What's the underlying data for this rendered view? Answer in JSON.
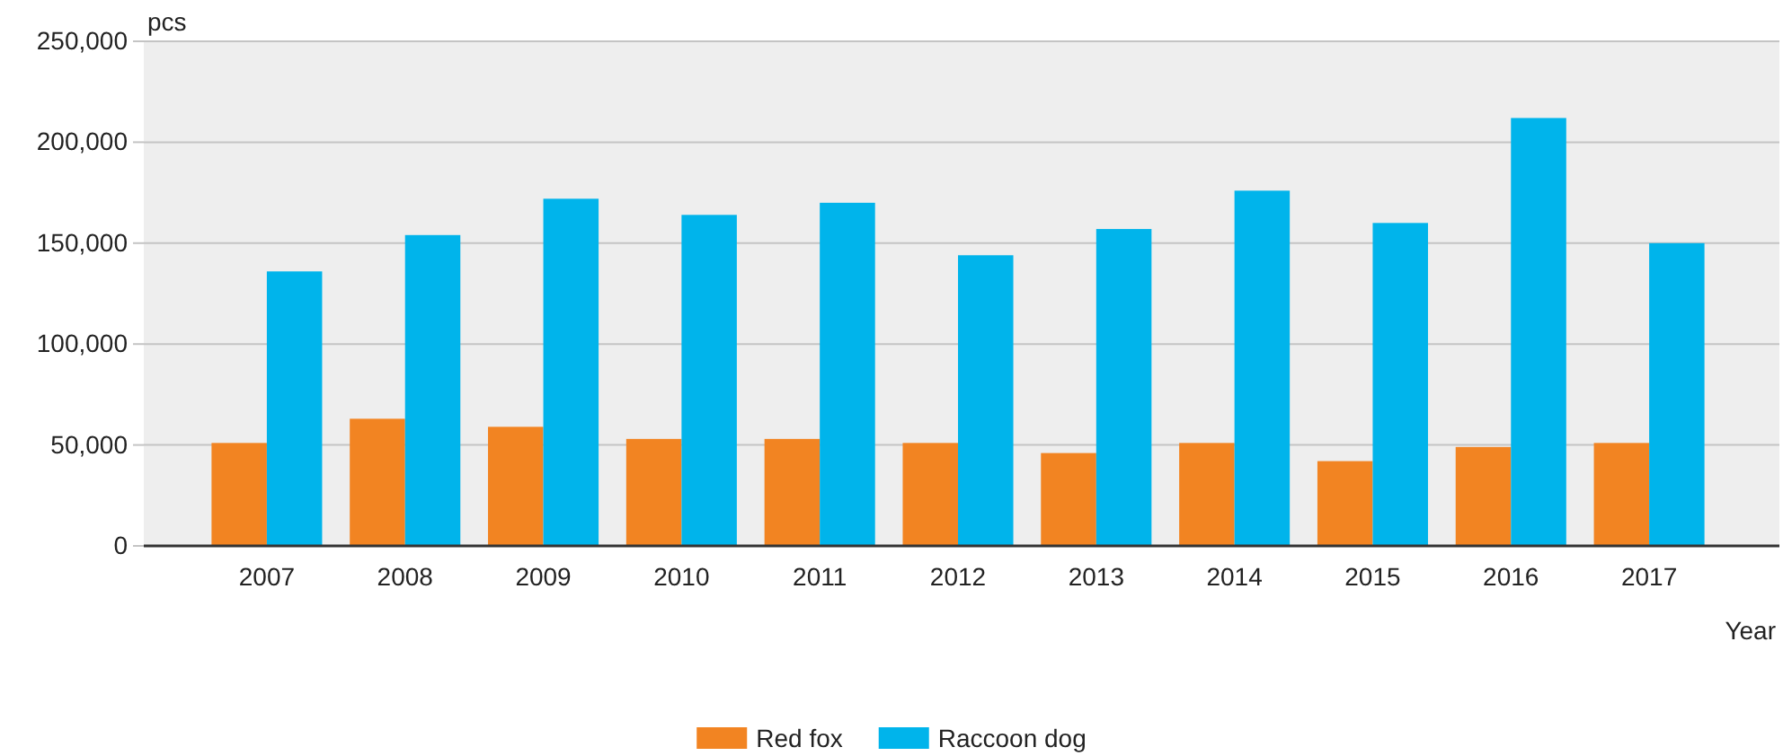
{
  "chart_data": {
    "type": "bar",
    "xlabel": "Year",
    "ylabel": "pcs",
    "categories": [
      "2007",
      "2008",
      "2009",
      "2010",
      "2011",
      "2012",
      "2013",
      "2014",
      "2015",
      "2016",
      "2017"
    ],
    "series": [
      {
        "name": "Red fox",
        "color": "#f28422",
        "values": [
          51000,
          63000,
          59000,
          53000,
          53000,
          51000,
          46000,
          51000,
          42000,
          49000,
          51000
        ]
      },
      {
        "name": "Raccoon dog",
        "color": "#00b4eb",
        "values": [
          136000,
          154000,
          172000,
          164000,
          170000,
          144000,
          157000,
          176000,
          160000,
          212000,
          150000
        ]
      }
    ],
    "ylim": [
      0,
      250000
    ],
    "yticks": [
      {
        "value": 0,
        "label": "0"
      },
      {
        "value": 50000,
        "label": "50,000"
      },
      {
        "value": 100000,
        "label": "100,000"
      },
      {
        "value": 150000,
        "label": "150,000"
      },
      {
        "value": 200000,
        "label": "200,000"
      },
      {
        "value": 250000,
        "label": "250,000"
      }
    ],
    "grid": "y",
    "legend": "bottom"
  }
}
